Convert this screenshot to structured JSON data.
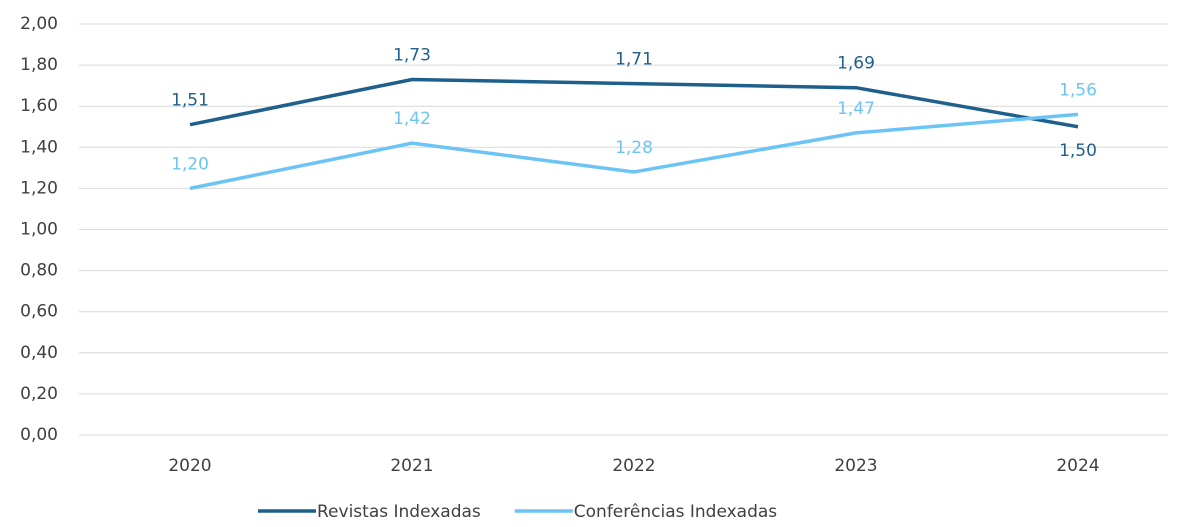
{
  "chart_data": {
    "type": "line",
    "categories": [
      "2020",
      "2021",
      "2022",
      "2023",
      "2024"
    ],
    "series": [
      {
        "name": "Revistas Indexadas",
        "color": "#1f5f8b",
        "values": [
          1.51,
          1.73,
          1.71,
          1.69,
          1.5
        ],
        "value_labels": [
          "1,51",
          "1,73",
          "1,71",
          "1,69",
          "1,50"
        ]
      },
      {
        "name": "Conferências Indexadas",
        "color": "#6cc4f5",
        "values": [
          1.2,
          1.42,
          1.28,
          1.47,
          1.56
        ],
        "value_labels": [
          "1,20",
          "1,42",
          "1,28",
          "1,47",
          "1,56"
        ]
      }
    ],
    "ylim": [
      0,
      2
    ],
    "yticks": [
      {
        "value": 0,
        "label": "0,00"
      },
      {
        "value": 0.2,
        "label": "0,20"
      },
      {
        "value": 0.4,
        "label": "0,40"
      },
      {
        "value": 0.6,
        "label": "0,60"
      },
      {
        "value": 0.8,
        "label": "0,80"
      },
      {
        "value": 1,
        "label": "1,00"
      },
      {
        "value": 1.2,
        "label": "1,20"
      },
      {
        "value": 1.4,
        "label": "1,40"
      },
      {
        "value": 1.6,
        "label": "1,60"
      },
      {
        "value": 1.8,
        "label": "1,80"
      },
      {
        "value": 2,
        "label": "2,00"
      }
    ],
    "grid": true,
    "legend": "bottom"
  }
}
